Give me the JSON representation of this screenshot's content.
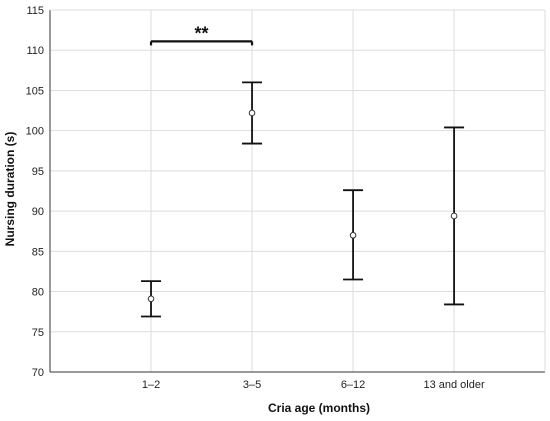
{
  "chart_data": {
    "type": "scatter",
    "title": "",
    "xlabel": "Cria age (months)",
    "ylabel": "Nursing duration (s)",
    "categories": [
      "1–2",
      "3–5",
      "6–12",
      "13 and older"
    ],
    "series": [
      {
        "values": [
          79.1,
          102.2,
          87.0,
          89.4
        ],
        "lower": [
          76.9,
          98.4,
          81.5,
          78.4
        ],
        "upper": [
          81.3,
          106.0,
          92.6,
          100.4
        ]
      }
    ],
    "ylim": [
      70,
      115
    ],
    "yticks": [
      "70",
      "75",
      "80",
      "85",
      "90",
      "95",
      "100",
      "105",
      "110",
      "115"
    ],
    "grid": true,
    "annotations": [
      {
        "text": "**",
        "from_category": "1–2",
        "to_category": "3–5",
        "level": 111.1
      }
    ],
    "colors": {
      "marker": "#333333",
      "error_bar": "#111111",
      "grid": "#dddddd",
      "axis": "#333333"
    }
  }
}
